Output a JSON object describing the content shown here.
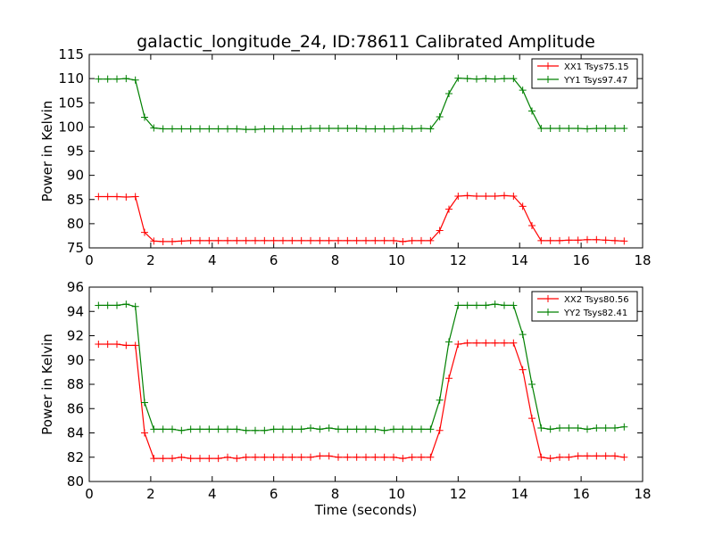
{
  "figure": {
    "title": "galactic_longitude_24, ID:78611 Calibrated Amplitude"
  },
  "chart_data": [
    {
      "type": "line",
      "title": "galactic_longitude_24, ID:78611 Calibrated Amplitude",
      "xlabel": "",
      "ylabel": "Power in Kelvin",
      "xlim": [
        0,
        18
      ],
      "ylim": [
        75,
        115
      ],
      "xticks": [
        0,
        2,
        4,
        6,
        8,
        10,
        12,
        14,
        16,
        18
      ],
      "yticks": [
        75,
        80,
        85,
        90,
        95,
        100,
        105,
        110,
        115
      ],
      "legend_position": "top-right",
      "marker": "+",
      "x": [
        0.3,
        0.6,
        0.9,
        1.2,
        1.5,
        1.8,
        2.1,
        2.4,
        2.7,
        3.0,
        3.3,
        3.6,
        3.9,
        4.2,
        4.5,
        4.8,
        5.1,
        5.4,
        5.7,
        6.0,
        6.3,
        6.6,
        6.9,
        7.2,
        7.5,
        7.8,
        8.1,
        8.4,
        8.7,
        9.0,
        9.3,
        9.6,
        9.9,
        10.2,
        10.5,
        10.8,
        11.1,
        11.4,
        11.7,
        12.0,
        12.3,
        12.6,
        12.9,
        13.2,
        13.5,
        13.8,
        14.1,
        14.4,
        14.7,
        15.0,
        15.3,
        15.6,
        15.9,
        16.2,
        16.5,
        16.8,
        17.1,
        17.4
      ],
      "series": [
        {
          "name": "XX1 Tsys75.15",
          "color": "#ff0000",
          "values": [
            85.6,
            85.6,
            85.6,
            85.5,
            85.6,
            78.2,
            76.4,
            76.3,
            76.3,
            76.4,
            76.5,
            76.5,
            76.5,
            76.5,
            76.5,
            76.5,
            76.5,
            76.5,
            76.5,
            76.5,
            76.5,
            76.5,
            76.5,
            76.5,
            76.5,
            76.5,
            76.5,
            76.5,
            76.5,
            76.5,
            76.5,
            76.5,
            76.5,
            76.3,
            76.5,
            76.5,
            76.5,
            78.6,
            83.0,
            85.7,
            85.8,
            85.7,
            85.7,
            85.7,
            85.8,
            85.7,
            83.6,
            79.6,
            76.5,
            76.5,
            76.5,
            76.6,
            76.6,
            76.7,
            76.7,
            76.6,
            76.5,
            76.4
          ]
        },
        {
          "name": "YY1 Tsys97.47",
          "color": "#008000",
          "values": [
            109.9,
            109.9,
            109.9,
            110.0,
            109.7,
            102.0,
            99.8,
            99.6,
            99.6,
            99.6,
            99.6,
            99.6,
            99.6,
            99.6,
            99.6,
            99.6,
            99.5,
            99.5,
            99.6,
            99.6,
            99.6,
            99.6,
            99.6,
            99.7,
            99.7,
            99.7,
            99.7,
            99.7,
            99.7,
            99.6,
            99.6,
            99.6,
            99.6,
            99.7,
            99.6,
            99.7,
            99.6,
            102.1,
            106.9,
            110.1,
            110.0,
            109.9,
            110.0,
            109.9,
            110.0,
            110.0,
            107.6,
            103.3,
            99.7,
            99.7,
            99.7,
            99.7,
            99.7,
            99.6,
            99.7,
            99.7,
            99.7,
            99.7
          ]
        }
      ]
    },
    {
      "type": "line",
      "title": "",
      "xlabel": "Time (seconds)",
      "ylabel": "Power in Kelvin",
      "xlim": [
        0,
        18
      ],
      "ylim": [
        80,
        96
      ],
      "xticks": [
        0,
        2,
        4,
        6,
        8,
        10,
        12,
        14,
        16,
        18
      ],
      "yticks": [
        80,
        82,
        84,
        86,
        88,
        90,
        92,
        94,
        96
      ],
      "legend_position": "top-right",
      "marker": "+",
      "x": [
        0.3,
        0.6,
        0.9,
        1.2,
        1.5,
        1.8,
        2.1,
        2.4,
        2.7,
        3.0,
        3.3,
        3.6,
        3.9,
        4.2,
        4.5,
        4.8,
        5.1,
        5.4,
        5.7,
        6.0,
        6.3,
        6.6,
        6.9,
        7.2,
        7.5,
        7.8,
        8.1,
        8.4,
        8.7,
        9.0,
        9.3,
        9.6,
        9.9,
        10.2,
        10.5,
        10.8,
        11.1,
        11.4,
        11.7,
        12.0,
        12.3,
        12.6,
        12.9,
        13.2,
        13.5,
        13.8,
        14.1,
        14.4,
        14.7,
        15.0,
        15.3,
        15.6,
        15.9,
        16.2,
        16.5,
        16.8,
        17.1,
        17.4
      ],
      "series": [
        {
          "name": "XX2 Tsys80.56",
          "color": "#ff0000",
          "values": [
            91.3,
            91.3,
            91.3,
            91.2,
            91.2,
            84.0,
            81.9,
            81.9,
            81.9,
            82.0,
            81.9,
            81.9,
            81.9,
            81.9,
            82.0,
            81.9,
            82.0,
            82.0,
            82.0,
            82.0,
            82.0,
            82.0,
            82.0,
            82.0,
            82.1,
            82.1,
            82.0,
            82.0,
            82.0,
            82.0,
            82.0,
            82.0,
            82.0,
            81.9,
            82.0,
            82.0,
            82.0,
            84.2,
            88.5,
            91.3,
            91.4,
            91.4,
            91.4,
            91.4,
            91.4,
            91.4,
            89.2,
            85.2,
            82.0,
            81.9,
            82.0,
            82.0,
            82.1,
            82.1,
            82.1,
            82.1,
            82.1,
            82.0
          ]
        },
        {
          "name": "YY2 Tsys82.41",
          "color": "#008000",
          "values": [
            94.5,
            94.5,
            94.5,
            94.6,
            94.4,
            86.5,
            84.3,
            84.3,
            84.3,
            84.2,
            84.3,
            84.3,
            84.3,
            84.3,
            84.3,
            84.3,
            84.2,
            84.2,
            84.2,
            84.3,
            84.3,
            84.3,
            84.3,
            84.4,
            84.3,
            84.4,
            84.3,
            84.3,
            84.3,
            84.3,
            84.3,
            84.2,
            84.3,
            84.3,
            84.3,
            84.3,
            84.3,
            86.7,
            91.5,
            94.5,
            94.5,
            94.5,
            94.5,
            94.6,
            94.5,
            94.5,
            92.1,
            88.0,
            84.4,
            84.3,
            84.4,
            84.4,
            84.4,
            84.3,
            84.4,
            84.4,
            84.4,
            84.5
          ]
        }
      ]
    }
  ]
}
